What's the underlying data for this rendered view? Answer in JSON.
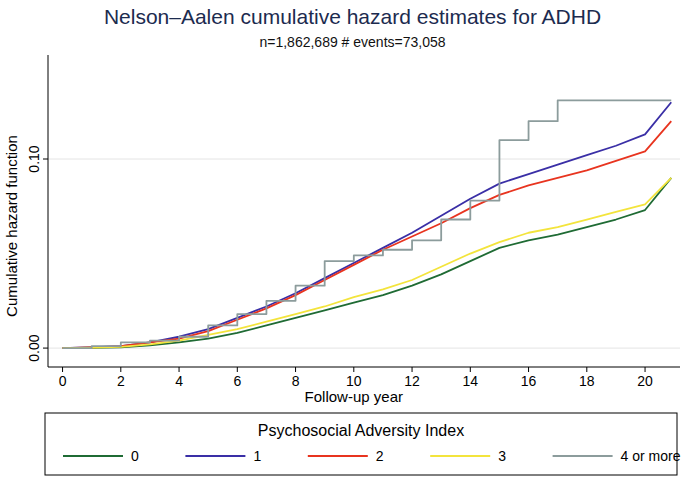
{
  "chart_data": {
    "type": "line",
    "title": "Nelson–Aalen cumulative hazard estimates for ADHD",
    "subtitle": "n=1,862,689 # events=73,058",
    "x_label": "Follow-up year",
    "y_label": "Cumulative hazard function",
    "legend_title": "Psychosocial Adversity Index",
    "legend": "bottom",
    "grid": true,
    "x": [
      0,
      1,
      2,
      3,
      4,
      5,
      6,
      7,
      8,
      9,
      10,
      11,
      12,
      13,
      14,
      15,
      16,
      17,
      18,
      19,
      20,
      20.9
    ],
    "xlim": [
      -0.5,
      21.2
    ],
    "ylim": [
      -0.01,
      0.155
    ],
    "xticks": [
      0,
      2,
      4,
      6,
      8,
      10,
      12,
      14,
      16,
      18,
      20
    ],
    "yticks": [
      {
        "value": 0,
        "label": "0.00"
      },
      {
        "value": 0.1,
        "label": "0.10"
      }
    ],
    "series": [
      {
        "name": "0",
        "color": "#1f6b34",
        "line_style": "solid",
        "values": [
          0,
          0.0001,
          0.0004,
          0.0015,
          0.003,
          0.005,
          0.008,
          0.012,
          0.016,
          0.02,
          0.024,
          0.028,
          0.033,
          0.039,
          0.046,
          0.053,
          0.057,
          0.06,
          0.064,
          0.068,
          0.073,
          0.09
        ]
      },
      {
        "name": "1",
        "color": "#3a2fa6",
        "line_style": "solid",
        "values": [
          0,
          0.0005,
          0.001,
          0.003,
          0.006,
          0.01,
          0.016,
          0.022,
          0.029,
          0.037,
          0.045,
          0.053,
          0.061,
          0.07,
          0.079,
          0.087,
          0.092,
          0.097,
          0.102,
          0.107,
          0.113,
          0.13
        ]
      },
      {
        "name": "2",
        "color": "#e8341f",
        "line_style": "solid",
        "values": [
          0,
          0.0004,
          0.001,
          0.003,
          0.005,
          0.009,
          0.015,
          0.021,
          0.028,
          0.036,
          0.044,
          0.052,
          0.059,
          0.066,
          0.074,
          0.081,
          0.086,
          0.09,
          0.094,
          0.099,
          0.104,
          0.12
        ]
      },
      {
        "name": "3",
        "color": "#f3e43c",
        "line_style": "solid",
        "values": [
          0,
          0.0002,
          0.0006,
          0.002,
          0.004,
          0.007,
          0.01,
          0.014,
          0.018,
          0.022,
          0.027,
          0.031,
          0.036,
          0.043,
          0.05,
          0.056,
          0.061,
          0.064,
          0.068,
          0.072,
          0.076,
          0.09
        ]
      },
      {
        "name": "4 or more",
        "color": "#8c9c9c",
        "line_style": "step",
        "values": [
          0,
          0.001,
          0.003,
          0.004,
          0.006,
          0.012,
          0.018,
          0.025,
          0.033,
          0.046,
          0.049,
          0.052,
          0.057,
          0.068,
          0.078,
          0.11,
          0.12,
          0.131,
          0.131,
          0.131,
          0.131,
          0.131
        ]
      }
    ]
  }
}
